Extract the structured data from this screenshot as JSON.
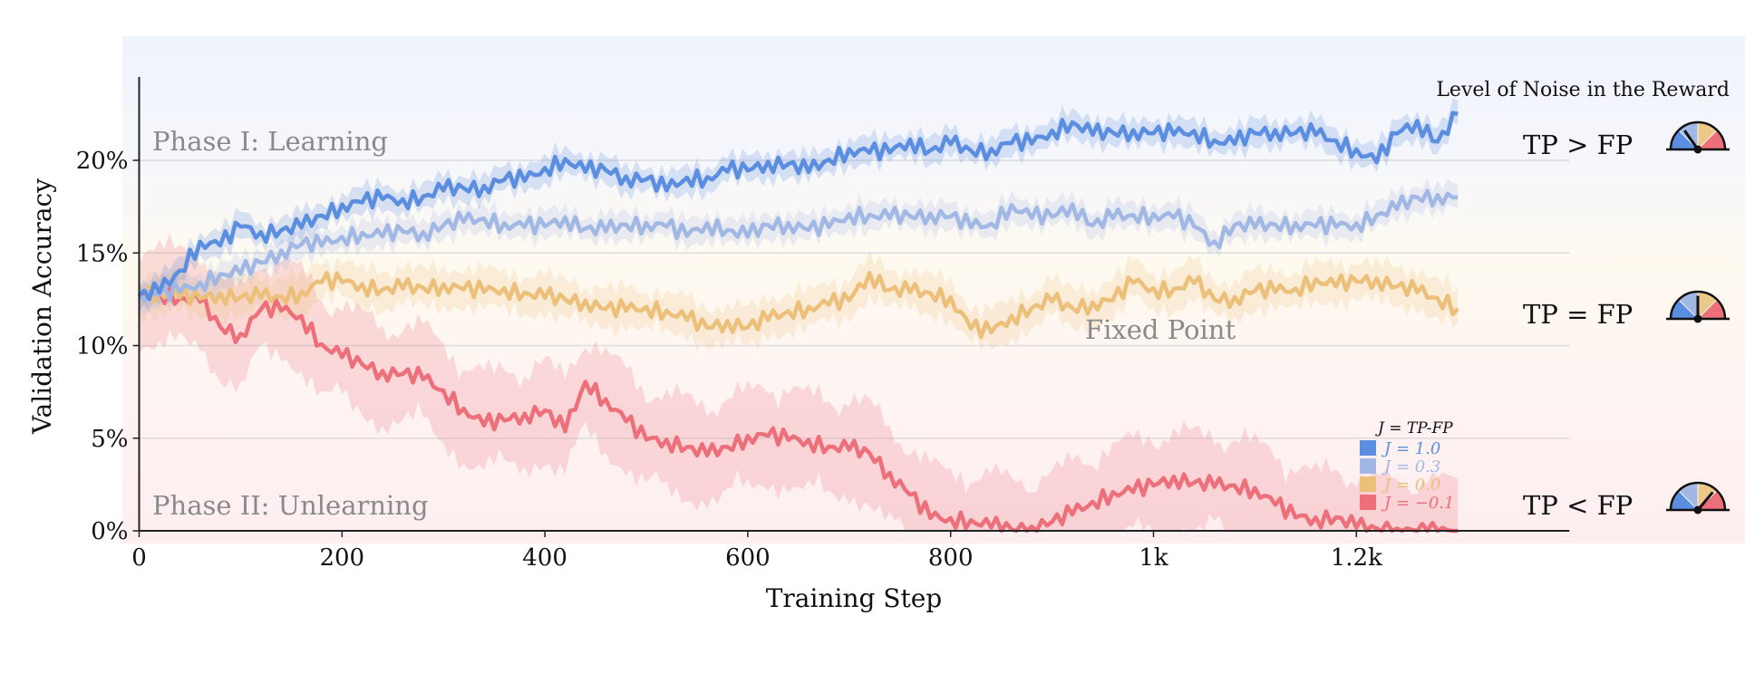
{
  "chart_data": {
    "type": "line",
    "xlabel": "Training Step",
    "ylabel": "Validation Accuracy",
    "xlim": [
      0,
      1410
    ],
    "ylim": [
      0,
      24.5
    ],
    "x_ticks": [
      0,
      200,
      400,
      600,
      800,
      1000,
      1200
    ],
    "x_tick_labels": [
      "0",
      "200",
      "400",
      "600",
      "800",
      "1k",
      "1.2k"
    ],
    "y_ticks": [
      0,
      5,
      10,
      15,
      20
    ],
    "y_tick_labels": [
      "0%",
      "5%",
      "10%",
      "15%",
      "20%"
    ],
    "grid": "horizontal",
    "x": [
      0,
      20,
      40,
      60,
      80,
      100,
      120,
      140,
      160,
      180,
      200,
      220,
      240,
      260,
      280,
      300,
      320,
      340,
      360,
      380,
      400,
      420,
      440,
      460,
      480,
      500,
      520,
      540,
      560,
      580,
      600,
      620,
      640,
      660,
      680,
      700,
      720,
      740,
      760,
      780,
      800,
      820,
      840,
      860,
      880,
      900,
      920,
      940,
      960,
      980,
      1000,
      1020,
      1040,
      1060,
      1080,
      1100,
      1120,
      1140,
      1160,
      1180,
      1200,
      1220,
      1240,
      1260,
      1280,
      1300
    ],
    "series": [
      {
        "name": "J = 1.0",
        "color": "#5b8ee0",
        "spread": 0.8,
        "values": [
          12.7,
          13,
          14,
          15.5,
          15.5,
          16.5,
          16,
          16.2,
          16.5,
          17,
          17.5,
          17.8,
          18,
          17.8,
          18,
          18.5,
          18.5,
          18.5,
          19,
          19,
          19.5,
          20,
          19.5,
          19.5,
          19,
          19,
          18.5,
          19,
          19,
          19.5,
          19.5,
          19.8,
          19.8,
          19.5,
          20,
          20.5,
          20.5,
          20.5,
          21,
          20.5,
          21,
          20.5,
          20.5,
          21,
          21,
          21.5,
          22,
          21.5,
          21.5,
          21.5,
          21.5,
          21.5,
          21.5,
          21,
          21,
          21.5,
          21.5,
          21.5,
          21.5,
          21,
          20.5,
          20,
          21.5,
          22,
          21,
          22.5
        ]
      },
      {
        "name": "J = 0.3",
        "color": "#a2b8e4",
        "spread": 0.8,
        "values": [
          12.7,
          12.8,
          13,
          13.3,
          13.8,
          14,
          14.5,
          15,
          15.5,
          15.5,
          15.8,
          16,
          16,
          16.2,
          16,
          16.5,
          16.8,
          16.8,
          16.5,
          16.5,
          16.5,
          16.8,
          16.3,
          16.3,
          16.5,
          16.5,
          16.5,
          16,
          16.5,
          16.2,
          16,
          16.5,
          16.5,
          16.3,
          16.5,
          17,
          17,
          17,
          17,
          17,
          17,
          16.5,
          16.5,
          17.5,
          17,
          17,
          17.5,
          16.5,
          17,
          17,
          17,
          17,
          16.5,
          15.5,
          16.5,
          16.5,
          16.5,
          16.5,
          16.5,
          16.5,
          16.5,
          17,
          17.5,
          18,
          18,
          18
        ]
      },
      {
        "name": "J = 0.0",
        "color": "#ecc07a",
        "spread": 1.2,
        "values": [
          12.7,
          12.8,
          12.7,
          12.6,
          12.7,
          12.6,
          12.7,
          12.6,
          12.8,
          13.5,
          13.5,
          13.2,
          13,
          13.2,
          13.1,
          13.2,
          13.1,
          13,
          13,
          12.8,
          12.7,
          12.5,
          12.3,
          12,
          12,
          12,
          11.8,
          11.5,
          11,
          11.2,
          11,
          11.5,
          11.8,
          12,
          12.3,
          12.5,
          13.8,
          13,
          13,
          12.8,
          12.5,
          11,
          10.8,
          11.5,
          12,
          12.5,
          12,
          12.2,
          12.5,
          13.5,
          13,
          13,
          13.5,
          12.5,
          12.5,
          13,
          13,
          13,
          13.5,
          13.3,
          13.5,
          13.5,
          13.2,
          13,
          12.5,
          12
        ]
      },
      {
        "name": "J = −0.1",
        "color": "#ec6f7a",
        "spread": 3,
        "values": [
          12.7,
          12.8,
          12.5,
          12.5,
          11,
          10.5,
          12,
          12,
          11.5,
          10,
          9.5,
          9,
          8.5,
          8.5,
          8.3,
          7.5,
          6.5,
          5.8,
          6,
          6.2,
          6.5,
          5.5,
          8,
          7,
          6,
          5,
          4.8,
          4.5,
          4.2,
          4.5,
          5,
          5.2,
          5,
          4.8,
          4.5,
          4.5,
          4.2,
          3,
          2,
          0.8,
          0.6,
          0.5,
          0.3,
          0.1,
          0.1,
          0.5,
          1,
          1.5,
          2,
          2.2,
          2.5,
          2.8,
          2.6,
          2.5,
          2.4,
          2.2,
          1.5,
          0.8,
          0.6,
          0.7,
          0.3,
          0.1,
          0,
          0,
          0,
          0
        ]
      }
    ],
    "legend": {
      "title": "J = TP-FP",
      "placement": "bottom-right",
      "entries": [
        "J = 1.0",
        "J = 0.3",
        "J = 0.0",
        "J = −0.1"
      ]
    },
    "annotations": {
      "phase1": "Phase I: Learning",
      "phase2": "Phase II: Unlearning",
      "fixed_point": "Fixed Point",
      "noise_title": "Level of Noise in the Reward"
    },
    "regimes": [
      {
        "label": "TP > FP",
        "needle_deg": 125
      },
      {
        "label": "TP = FP",
        "needle_deg": 90
      },
      {
        "label": "TP < FP",
        "needle_deg": 50
      }
    ],
    "gauge_colors": [
      "#5b8ee0",
      "#a2b8e4",
      "#ecc889",
      "#ec6f7a"
    ]
  }
}
